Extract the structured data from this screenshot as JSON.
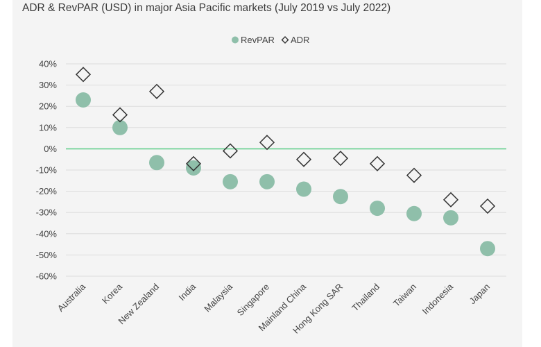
{
  "chart_data": {
    "type": "scatter",
    "title": "ADR & RevPAR (USD) in major Asia Pacific markets (July 2019 vs July 2022)",
    "categories": [
      "Australia",
      "Korea",
      "New Zealand",
      "India",
      "Malaysia",
      "Singapore",
      "Mainland China",
      "Hong Kong SAR",
      "Thailand",
      "Taiwan",
      "Indonesia",
      "Japan"
    ],
    "series": [
      {
        "name": "RevPAR",
        "marker": "circle",
        "color": "#8fbfaa",
        "values": [
          23,
          10,
          -6.5,
          -9,
          -15.5,
          -15.5,
          -19,
          -22.5,
          -28,
          -30.5,
          -32.5,
          -47
        ]
      },
      {
        "name": "ADR",
        "marker": "diamond",
        "color": "#333333",
        "values": [
          35,
          16,
          27,
          -7,
          -1,
          3,
          -5,
          -4.5,
          -7,
          -12.5,
          -24,
          -27
        ]
      }
    ],
    "ylim": [
      -60,
      40
    ],
    "yticks": [
      40,
      30,
      20,
      10,
      0,
      -10,
      -20,
      -30,
      -40,
      -50,
      -60
    ],
    "ytick_labels": [
      "40%",
      "30%",
      "20%",
      "10%",
      "0%",
      "-10%",
      "-20%",
      "-30%",
      "-40%",
      "-50%",
      "-60%"
    ],
    "zero_line_color": "#7fd6a0",
    "grid": true,
    "legend_position": "top-center"
  }
}
